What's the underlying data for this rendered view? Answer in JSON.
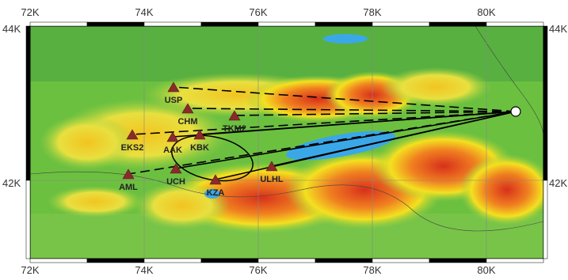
{
  "map": {
    "x_ticks": [
      "72K",
      "74K",
      "76K",
      "78K",
      "80K"
    ],
    "y_ticks": [
      "44K",
      "42K"
    ],
    "stations": [
      "USP",
      "CHM",
      "TKM2",
      "EKS2",
      "AAK",
      "KBK",
      "AML",
      "UCH",
      "KZA",
      "ULHL"
    ]
  }
}
